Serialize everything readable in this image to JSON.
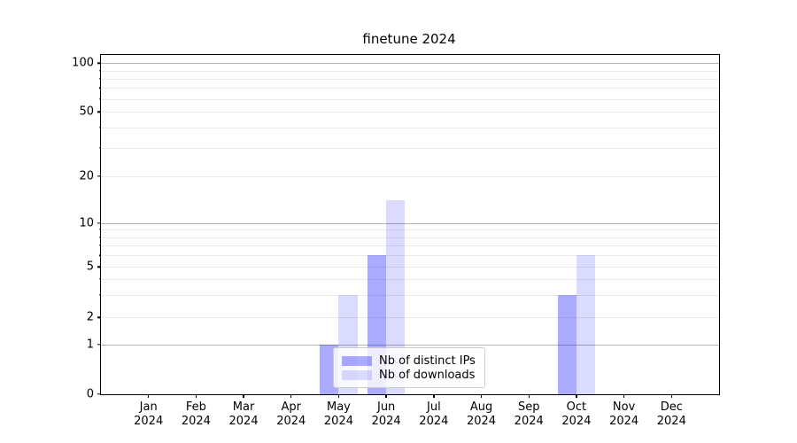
{
  "title": "finetune 2024",
  "legend": {
    "items": [
      {
        "label": "Nb of distinct IPs",
        "color": "rgba(0,0,255,0.33)"
      },
      {
        "label": "Nb of downloads",
        "color": "rgba(0,0,255,0.14)"
      }
    ]
  },
  "chart_data": {
    "type": "bar",
    "title": "finetune 2024",
    "x_months": [
      "Jan",
      "Feb",
      "Mar",
      "Apr",
      "May",
      "Jun",
      "Jul",
      "Aug",
      "Sep",
      "Oct",
      "Nov",
      "Dec"
    ],
    "x_year": "2024",
    "series": [
      {
        "name": "Nb of distinct IPs",
        "color": "rgba(0,0,255,0.33)",
        "values": [
          0,
          0,
          0,
          0,
          1,
          6,
          0,
          0,
          0,
          3,
          0,
          0
        ]
      },
      {
        "name": "Nb of downloads",
        "color": "rgba(0,0,255,0.14)",
        "values": [
          0,
          0,
          0,
          0,
          3,
          14,
          0,
          0,
          0,
          6,
          0,
          0
        ]
      }
    ],
    "y_ticks": [
      100,
      50,
      20,
      10,
      5,
      2,
      1,
      0
    ],
    "y_gridlines_major": [
      1,
      10,
      100
    ],
    "y_gridlines_minor": [
      2,
      3,
      4,
      5,
      6,
      7,
      8,
      9,
      20,
      30,
      40,
      50,
      60,
      70,
      80,
      90
    ],
    "yscale": "log-like (symlog with 0 baseline)",
    "ylim": [
      0,
      115
    ],
    "grid": "horizontal",
    "legend_position": "lower center"
  }
}
